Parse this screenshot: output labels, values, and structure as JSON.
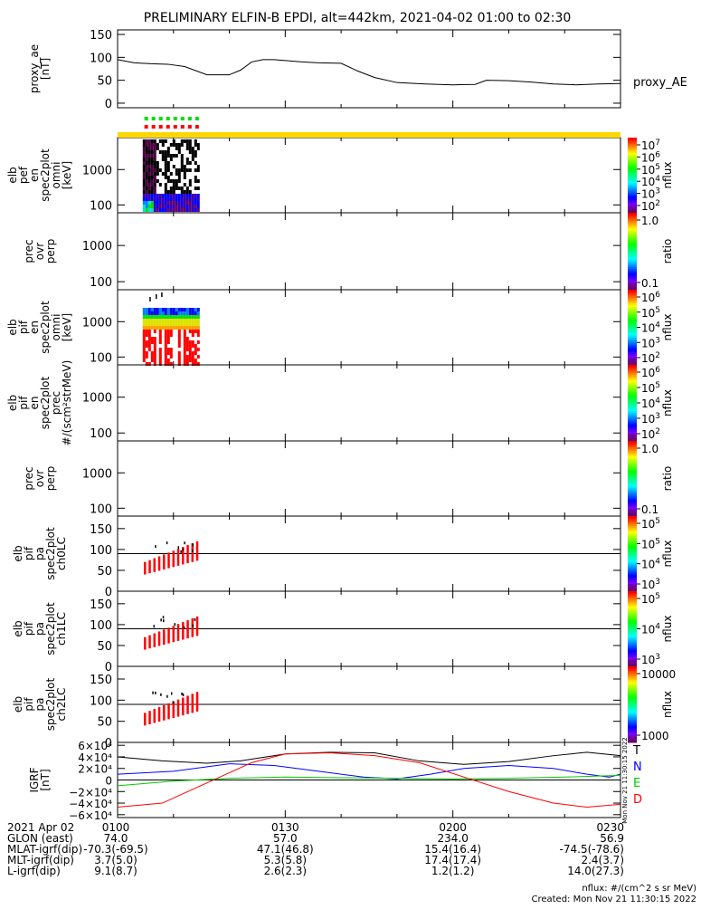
{
  "title": "PRELIMINARY ELFIN-B EPDI, alt=442km, 2021-04-02 01:00 to 02:30",
  "chart_data": [
    {
      "type": "line",
      "id": "proxy_ae",
      "ylabel": [
        "proxy_ae",
        "[nT]"
      ],
      "right_label": "proxy_AE",
      "ylim": [
        -10,
        160
      ],
      "yticks": [
        "150",
        "100",
        "50",
        "0"
      ],
      "yticks_values": [
        150,
        100,
        50,
        0
      ],
      "x_minutes": [
        0,
        3,
        6,
        9,
        12,
        16,
        20,
        22,
        24,
        26,
        28,
        30,
        33,
        36,
        40,
        43,
        46,
        50,
        55,
        60,
        64,
        66,
        70,
        74,
        78,
        82,
        86,
        90
      ],
      "values": [
        95,
        88,
        86,
        85,
        80,
        62,
        62,
        72,
        90,
        95,
        95,
        93,
        90,
        88,
        87,
        70,
        56,
        45,
        42,
        40,
        41,
        50,
        49,
        46,
        42,
        40,
        42,
        43
      ]
    },
    {
      "type": "heatmap",
      "id": "elb_pef_en",
      "ylabel": [
        "elb",
        "pef",
        "en",
        "spec2plot",
        "omni",
        "[keV]"
      ],
      "yticks": [
        "1000",
        "100"
      ],
      "log": true,
      "colorbar": {
        "ticks": [
          "10^7",
          "10^6",
          "10^5",
          "10^4",
          "10^3",
          "10^2"
        ],
        "label": "nflux"
      }
    },
    {
      "type": "heatmap",
      "id": "prec_ovr_perp_e",
      "ylabel": [
        "prec",
        "ovr",
        "perp"
      ],
      "yticks": [
        "1000",
        "100"
      ],
      "log": true,
      "colorbar": {
        "ticks": [
          "1.0",
          "0.1"
        ],
        "label": "ratio"
      }
    },
    {
      "type": "heatmap",
      "id": "elb_pif_en",
      "ylabel": [
        "elb",
        "pif",
        "en",
        "spec2plot",
        "omni",
        "[keV]"
      ],
      "yticks": [
        "1000",
        "100"
      ],
      "log": true,
      "colorbar": {
        "ticks": [
          "10^6",
          "10^5",
          "10^4",
          "10^3",
          "10^2"
        ],
        "label": "nflux"
      }
    },
    {
      "type": "heatmap",
      "id": "elb_pif_en_prec",
      "ylabel": [
        "elb",
        "pif",
        "en",
        "spec2plot",
        "prec",
        "#/(scm²strMeV)"
      ],
      "yticks": [
        "1000",
        "100"
      ],
      "log": true,
      "colorbar": {
        "ticks": [
          "10^6",
          "10^5",
          "10^4",
          "10^3",
          "10^2"
        ],
        "label": "nflux"
      }
    },
    {
      "type": "heatmap",
      "id": "prec_ovr_perp_i",
      "ylabel": [
        "prec",
        "ovr",
        "perp"
      ],
      "yticks": [
        "1000",
        "100"
      ],
      "log": true,
      "colorbar": {
        "ticks": [
          "1.0",
          "0.1"
        ],
        "label": "ratio"
      }
    },
    {
      "type": "heatmap",
      "id": "elb_pif_pa_ch0",
      "ylabel": [
        "elb",
        "pif",
        "pa",
        "spec2plot",
        "ch0LC"
      ],
      "yticks": [
        "150",
        "100",
        "50",
        "0"
      ],
      "yticks_values": [
        150,
        100,
        50,
        0
      ],
      "ylim": [
        0,
        180
      ],
      "loss_cone": 90,
      "colorbar": {
        "ticks": [
          "10^5",
          "10^5",
          "10^4",
          "10^3"
        ],
        "label": "nflux"
      }
    },
    {
      "type": "heatmap",
      "id": "elb_pif_pa_ch1",
      "ylabel": [
        "elb",
        "pif",
        "pa",
        "spec2plot",
        "ch1LC"
      ],
      "yticks": [
        "150",
        "100",
        "50",
        "0"
      ],
      "yticks_values": [
        150,
        100,
        50,
        0
      ],
      "ylim": [
        0,
        180
      ],
      "loss_cone": 90,
      "colorbar": {
        "ticks": [
          "10^5",
          "10^4",
          "10^3"
        ],
        "label": "nflux"
      }
    },
    {
      "type": "heatmap",
      "id": "elb_pif_pa_ch2",
      "ylabel": [
        "elb",
        "pif",
        "pa",
        "spec2plot",
        "ch2LC"
      ],
      "yticks": [
        "150",
        "100",
        "50",
        "0"
      ],
      "yticks_values": [
        150,
        100,
        50,
        0
      ],
      "ylim": [
        0,
        180
      ],
      "loss_cone": 90,
      "colorbar": {
        "ticks": [
          "10000",
          "1000"
        ],
        "label": "nflux"
      }
    },
    {
      "type": "line",
      "id": "igrf",
      "ylabel": [
        "IGRF",
        "[nT]"
      ],
      "ylim": [
        -65000,
        65000
      ],
      "yticks": [
        "6×10⁴",
        "4×10⁴",
        "2×10⁴",
        "0",
        "−2×10⁴",
        "−4×10⁴",
        "−6×10⁴"
      ],
      "yticks_values": [
        60000,
        40000,
        20000,
        0,
        -20000,
        -40000,
        -60000
      ],
      "series": [
        {
          "name": "T",
          "color": "#000000",
          "x_minutes": [
            0,
            8,
            16,
            22,
            30,
            38,
            46,
            54,
            62,
            70,
            78,
            84,
            90
          ],
          "values": [
            40000,
            33000,
            29000,
            33000,
            45000,
            48000,
            47000,
            33000,
            27000,
            32000,
            42000,
            48000,
            42000
          ]
        },
        {
          "name": "N",
          "color": "#0000ff",
          "x_minutes": [
            0,
            10,
            20,
            28,
            36,
            44,
            50,
            56,
            62,
            70,
            78,
            84,
            88,
            90
          ],
          "values": [
            10000,
            15000,
            28000,
            25000,
            15000,
            5000,
            2000,
            10000,
            20000,
            25000,
            20000,
            10000,
            5000,
            10000
          ]
        },
        {
          "name": "E",
          "color": "#00cc00",
          "x_minutes": [
            0,
            10,
            20,
            30,
            40,
            50,
            60,
            70,
            80,
            90
          ],
          "values": [
            -10000,
            -2000,
            3000,
            5000,
            4000,
            3000,
            2000,
            3000,
            5000,
            8000
          ]
        },
        {
          "name": "D",
          "color": "#ff0000",
          "x_minutes": [
            0,
            8,
            16,
            24,
            30,
            38,
            46,
            54,
            62,
            70,
            78,
            84,
            90
          ],
          "values": [
            -47000,
            -40000,
            -5000,
            30000,
            45000,
            47000,
            42000,
            30000,
            5000,
            -20000,
            -40000,
            -47000,
            -42000
          ]
        }
      ]
    }
  ],
  "time_axis": {
    "labels": [
      "0100",
      "0130",
      "0200",
      "0230"
    ],
    "label_minutes": [
      0,
      30,
      60,
      90
    ]
  },
  "ephemeris": {
    "rows": [
      {
        "label": "2021 Apr 02",
        "values": [
          "0100",
          "0130",
          "0200",
          "0230"
        ]
      },
      {
        "label": "GLON (east)",
        "values": [
          "74.0",
          "57.0",
          "234.0",
          "56.9"
        ]
      },
      {
        "label": "MLAT-igrf(dip)",
        "values": [
          "-70.3(-69.5)",
          "47.1(46.8)",
          "15.4(16.4)",
          "-74.5(-78.6)"
        ]
      },
      {
        "label": "MLT-igrf(dip)",
        "values": [
          "3.7(5.0)",
          "5.3(5.8)",
          "17.4(17.4)",
          "2.4(3.7)"
        ]
      },
      {
        "label": "L-igrf(dip)",
        "values": [
          "9.1(8.7)",
          "2.6(2.3)",
          "1.2(1.2)",
          "14.0(27.3)"
        ]
      }
    ]
  },
  "footer": {
    "units": "nflux: #/(cm^2 s sr MeV)",
    "created": "Created: Mon Nov 21 11:30:15 2022",
    "vertical_stamp": "Mon Nov 21 11:30:15 2022"
  },
  "colors": {
    "status_bar": "#ffd700",
    "marker_green": "#00dd00",
    "marker_red": "#ff0000",
    "loss_cone_line": "#000000"
  }
}
